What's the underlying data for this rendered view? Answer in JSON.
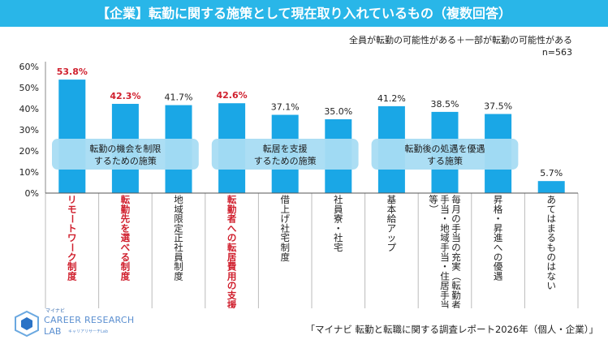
{
  "title": "【企業】転勤に関する施策として現在取り入れているもの（複数回答）",
  "note_line1": "全員が転勤の可能性がある＋一部が転勤の可能性がある",
  "note_line2": "n=563",
  "footer": "「マイナビ 転勤と転職に関する調査レポート2026年（個人・企業）」",
  "logo": {
    "sub": "マイナビ",
    "brand": "CAREER RESEARCH",
    "brand2": "LAB",
    "tag": "キャリアリサーチLab"
  },
  "colors": {
    "bar": "#1aa7e6",
    "header": "#29b6e8",
    "highlight_label": "#d0202e",
    "group_box": "#a8dcf3"
  },
  "group_labels": [
    {
      "line1": "転勤の機会を制限",
      "line2": "するための施策",
      "from": 0,
      "to": 2
    },
    {
      "line1": "転居を支援",
      "line2": "するための施策",
      "from": 3,
      "to": 5
    },
    {
      "line1": "転勤後の処遇を優遇",
      "line2": "する施策",
      "from": 6,
      "to": 8
    }
  ],
  "chart_data": {
    "type": "bar",
    "categories": [
      "リモートワーク制度",
      "転勤先を選べる制度",
      "地域限定正社員制度",
      "転勤者への転居費用の支援",
      "借上げ社宅制度",
      "社員寮・社宅",
      "基本給アップ",
      "毎月の手当の充実（転勤者手当・地域手当・住居手当等）",
      "昇格・昇進への優遇",
      "あてはまるものはない"
    ],
    "values": [
      53.8,
      42.3,
      41.7,
      42.6,
      37.1,
      35.0,
      41.2,
      38.5,
      37.5,
      5.7
    ],
    "value_labels": [
      "53.8%",
      "42.3%",
      "41.7%",
      "42.6%",
      "37.1%",
      "35.0%",
      "41.2%",
      "38.5%",
      "37.5%",
      "5.7%"
    ],
    "highlighted": [
      0,
      1,
      3
    ],
    "y_ticks": [
      "0%",
      "10%",
      "20%",
      "30%",
      "40%",
      "50%",
      "60%"
    ],
    "ylim": [
      0,
      60
    ],
    "xlabel": "",
    "ylabel": "",
    "grid": false
  }
}
